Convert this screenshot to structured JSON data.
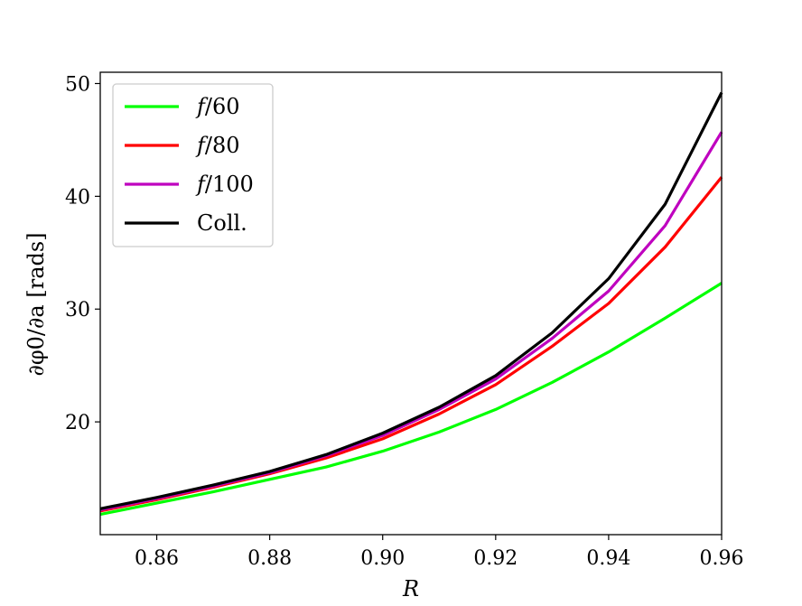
{
  "chart_data": {
    "type": "line",
    "xlabel": "R",
    "ylabel": "∂φ0/∂a [rads]",
    "xlim": [
      0.85,
      0.96
    ],
    "ylim": [
      10.0,
      51.0
    ],
    "x_ticks": [
      0.86,
      0.88,
      0.9,
      0.92,
      0.94,
      0.96
    ],
    "x_tick_labels": [
      "0.86",
      "0.88",
      "0.90",
      "0.92",
      "0.94",
      "0.96"
    ],
    "y_ticks": [
      20,
      30,
      40,
      50
    ],
    "y_tick_labels": [
      "20",
      "30",
      "40",
      "50"
    ],
    "grid": false,
    "legend_position": "top-left",
    "x": [
      0.85,
      0.86,
      0.87,
      0.88,
      0.89,
      0.9,
      0.91,
      0.92,
      0.93,
      0.94,
      0.95,
      0.96
    ],
    "series": [
      {
        "name": "f/60",
        "color": "#00ff00",
        "values": [
          11.8,
          12.8,
          13.8,
          14.9,
          16.0,
          17.4,
          19.1,
          21.1,
          23.5,
          26.2,
          29.2,
          32.3
        ]
      },
      {
        "name": "f/80",
        "color": "#ff0000",
        "values": [
          12.1,
          13.1,
          14.2,
          15.4,
          16.8,
          18.5,
          20.7,
          23.3,
          26.7,
          30.5,
          35.5,
          41.7
        ]
      },
      {
        "name": "f/100",
        "color": "#bf00bf",
        "values": [
          12.2,
          13.2,
          14.3,
          15.5,
          17.0,
          18.8,
          21.1,
          23.8,
          27.4,
          31.6,
          37.4,
          45.7
        ]
      },
      {
        "name": "Coll.",
        "color": "#000000",
        "values": [
          12.3,
          13.3,
          14.4,
          15.6,
          17.1,
          19.0,
          21.3,
          24.1,
          27.9,
          32.7,
          39.3,
          49.2
        ]
      }
    ]
  }
}
